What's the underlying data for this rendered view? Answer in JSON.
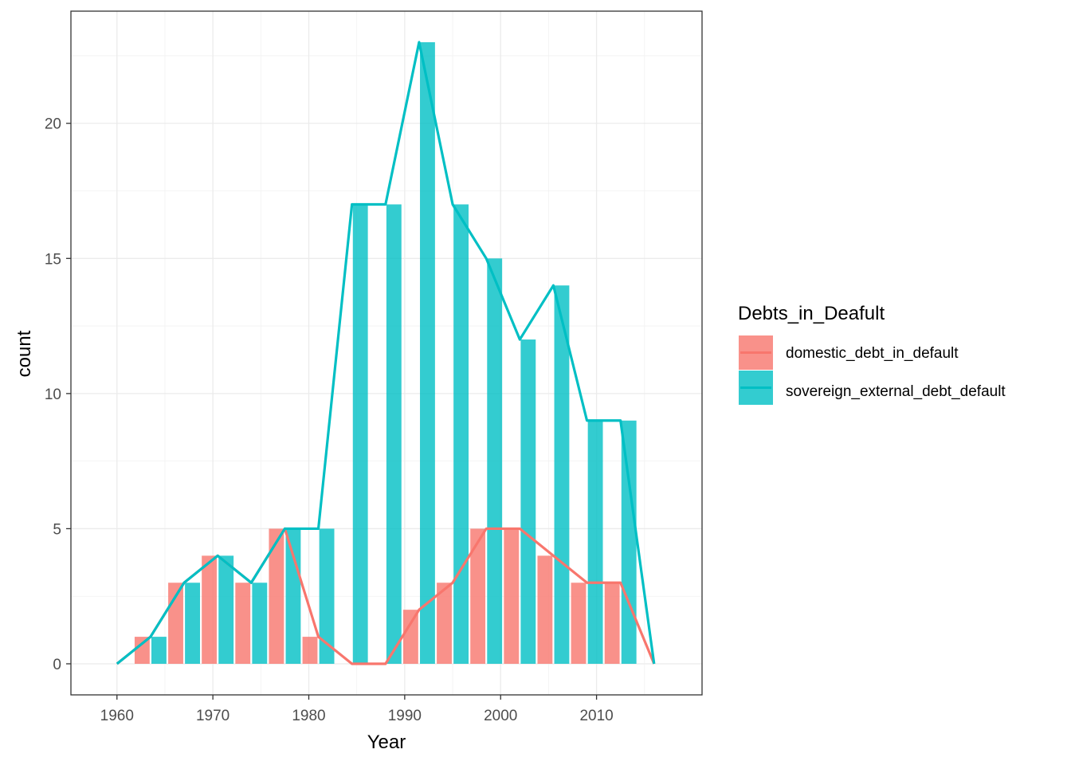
{
  "chart_data": {
    "type": "bar",
    "title": "",
    "xlabel": "Year",
    "ylabel": "count",
    "xlim": [
      1955.2,
      2021.0
    ],
    "ylim": [
      -1.15,
      24.15
    ],
    "x_ticks": [
      1960,
      1970,
      1980,
      1990,
      2000,
      2010
    ],
    "y_ticks": [
      0,
      5,
      10,
      15,
      20
    ],
    "grid": true,
    "legend": {
      "title": "Debts_in_Deafult",
      "position": "right"
    },
    "bin_width": 3.5,
    "bins": [
      1963.5,
      1967.0,
      1970.5,
      1974.0,
      1977.5,
      1981.0,
      1984.5,
      1988.0,
      1991.5,
      1995.0,
      1998.5,
      2002.0,
      2005.5,
      2009.0,
      2012.5
    ],
    "freqpoly_x": [
      1960.0,
      1963.5,
      1967.0,
      1970.5,
      1974.0,
      1977.5,
      1981.0,
      1984.5,
      1988.0,
      1991.5,
      1995.0,
      1998.5,
      2002.0,
      2005.5,
      2009.0,
      2012.5,
      2016.0
    ],
    "series": [
      {
        "name": "domestic_debt_in_default",
        "color": "#F8766D",
        "values": [
          1,
          3,
          4,
          3,
          5,
          1,
          0,
          0,
          2,
          3,
          5,
          5,
          4,
          3,
          3
        ],
        "line": [
          0,
          1,
          3,
          4,
          3,
          5,
          1,
          0,
          0,
          2,
          3,
          5,
          5,
          4,
          3,
          3,
          0
        ]
      },
      {
        "name": "sovereign_external_debt_default",
        "color": "#00BFC4",
        "values": [
          1,
          3,
          4,
          3,
          5,
          5,
          17,
          17,
          23,
          17,
          15,
          12,
          14,
          9,
          9
        ],
        "line": [
          0,
          1,
          3,
          4,
          3,
          5,
          5,
          17,
          17,
          23,
          17,
          15,
          12,
          14,
          9,
          9,
          0
        ]
      }
    ]
  }
}
